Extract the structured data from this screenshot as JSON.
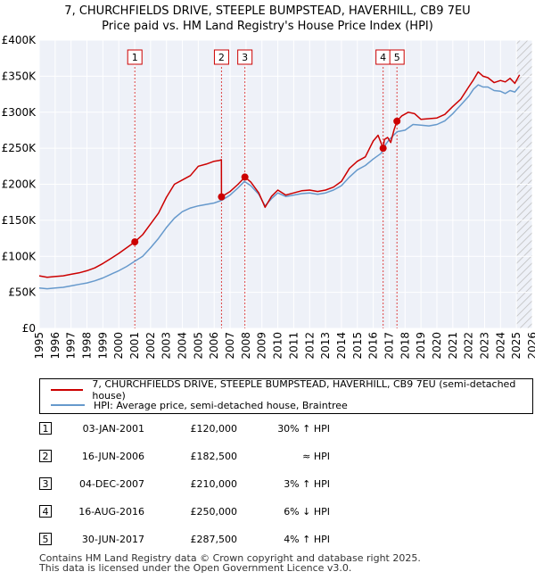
{
  "chart_data": {
    "type": "line",
    "title": "7, CHURCHFIELDS DRIVE, STEEPLE BUMPSTEAD, HAVERHILL, CB9 7EU",
    "subtitle": "Price paid vs. HM Land Registry's House Price Index (HPI)",
    "xlim": [
      1995,
      2026
    ],
    "ylim": [
      0,
      400000
    ],
    "x_ticks": [
      "1995",
      "1996",
      "1997",
      "1998",
      "1999",
      "2000",
      "2001",
      "2002",
      "2003",
      "2004",
      "2005",
      "2006",
      "2007",
      "2008",
      "2009",
      "2010",
      "2011",
      "2012",
      "2013",
      "2014",
      "2015",
      "2016",
      "2017",
      "2018",
      "2019",
      "2020",
      "2021",
      "2022",
      "2023",
      "2024",
      "2025",
      "2026"
    ],
    "y_ticks": [
      "£0",
      "£50K",
      "£100K",
      "£150K",
      "£200K",
      "£250K",
      "£300K",
      "£350K",
      "£400K"
    ],
    "grid": true,
    "series": [
      {
        "name": "7, CHURCHFIELDS DRIVE, STEEPLE BUMPSTEAD, HAVERHILL, CB9 7EU (semi-detached house)",
        "color": "#cc0000",
        "x": [
          1995.0,
          1995.5,
          1996.0,
          1996.5,
          1997.0,
          1997.5,
          1998.0,
          1998.5,
          1999.0,
          1999.5,
          2000.0,
          2000.5,
          2001.01,
          2001.5,
          2002.0,
          2002.5,
          2003.0,
          2003.5,
          2004.0,
          2004.5,
          2005.0,
          2005.5,
          2006.0,
          2006.3,
          2006.45,
          2006.46,
          2007.0,
          2007.5,
          2007.93,
          2008.3,
          2008.8,
          2009.2,
          2009.6,
          2010.0,
          2010.5,
          2011.0,
          2011.5,
          2012.0,
          2012.5,
          2013.0,
          2013.5,
          2014.0,
          2014.5,
          2015.0,
          2015.5,
          2016.0,
          2016.3,
          2016.62,
          2016.7,
          2016.9,
          2017.1,
          2017.3,
          2017.49,
          2017.8,
          2018.2,
          2018.6,
          2019.0,
          2019.5,
          2020.0,
          2020.5,
          2021.0,
          2021.5,
          2022.0,
          2022.3,
          2022.6,
          2022.9,
          2023.2,
          2023.6,
          2024.0,
          2024.3,
          2024.6,
          2024.9,
          2025.2
        ],
        "values": [
          73000,
          71000,
          72000,
          73000,
          75000,
          77000,
          80000,
          84000,
          90000,
          97000,
          104000,
          112000,
          120000,
          130000,
          145000,
          160000,
          182000,
          200000,
          206000,
          212000,
          225000,
          228000,
          232000,
          233000,
          234000,
          182500,
          190000,
          200000,
          210000,
          203000,
          188000,
          168000,
          183000,
          192000,
          185000,
          188000,
          191000,
          192000,
          190000,
          192000,
          196000,
          204000,
          222000,
          232000,
          238000,
          260000,
          268000,
          250000,
          262000,
          265000,
          258000,
          275000,
          287500,
          295000,
          300000,
          298000,
          290000,
          291000,
          292000,
          297000,
          308000,
          318000,
          335000,
          345000,
          356000,
          350000,
          348000,
          341000,
          344000,
          342000,
          347000,
          340000,
          352000
        ]
      },
      {
        "name": "HPI: Average price, semi-detached house, Braintree",
        "color": "#6699cc",
        "x": [
          1995.0,
          1995.5,
          1996.0,
          1996.5,
          1997.0,
          1997.5,
          1998.0,
          1998.5,
          1999.0,
          1999.5,
          2000.0,
          2000.5,
          2001.0,
          2001.5,
          2002.0,
          2002.5,
          2003.0,
          2003.5,
          2004.0,
          2004.5,
          2005.0,
          2005.5,
          2006.0,
          2006.5,
          2007.0,
          2007.5,
          2007.9,
          2008.3,
          2008.8,
          2009.2,
          2009.6,
          2010.0,
          2010.5,
          2011.0,
          2011.5,
          2012.0,
          2012.5,
          2013.0,
          2013.5,
          2014.0,
          2014.5,
          2015.0,
          2015.5,
          2016.0,
          2016.5,
          2016.8,
          2017.0,
          2017.5,
          2018.0,
          2018.5,
          2019.0,
          2019.5,
          2020.0,
          2020.5,
          2021.0,
          2021.5,
          2022.0,
          2022.3,
          2022.6,
          2022.9,
          2023.2,
          2023.6,
          2024.0,
          2024.3,
          2024.6,
          2024.9,
          2025.2
        ],
        "values": [
          56000,
          55000,
          56000,
          57000,
          59000,
          61000,
          63000,
          66000,
          70000,
          75000,
          80000,
          86000,
          93000,
          100000,
          112000,
          125000,
          140000,
          153000,
          162000,
          167000,
          170000,
          172000,
          174000,
          178000,
          185000,
          195000,
          204000,
          198000,
          186000,
          170000,
          180000,
          188000,
          183000,
          185000,
          187000,
          188000,
          186000,
          188000,
          192000,
          198000,
          210000,
          220000,
          226000,
          235000,
          243000,
          256000,
          262000,
          273000,
          275000,
          283000,
          282000,
          281000,
          283000,
          288000,
          298000,
          310000,
          322000,
          332000,
          338000,
          335000,
          335000,
          330000,
          329000,
          326000,
          330000,
          328000,
          336000
        ]
      }
    ],
    "sale_markers": [
      {
        "label": "1",
        "x": 2001.01,
        "y": 120000
      },
      {
        "label": "2",
        "x": 2006.46,
        "y": 182500
      },
      {
        "label": "3",
        "x": 2007.93,
        "y": 210000
      },
      {
        "label": "4",
        "x": 2016.62,
        "y": 250000
      },
      {
        "label": "5",
        "x": 2017.49,
        "y": 287500
      }
    ],
    "annotations": "Dashed vertical lines at each sale date with numbered boxes; hatched region after early 2025"
  },
  "legend": {
    "property_label": "7, CHURCHFIELDS DRIVE, STEEPLE BUMPSTEAD, HAVERHILL, CB9 7EU (semi-detached house)",
    "hpi_label": "HPI: Average price, semi-detached house, Braintree",
    "property_color": "#cc0000",
    "hpi_color": "#6699cc"
  },
  "sales": [
    {
      "num": "1",
      "date": "03-JAN-2001",
      "price": "£120,000",
      "hpi": "30% ↑ HPI"
    },
    {
      "num": "2",
      "date": "16-JUN-2006",
      "price": "£182,500",
      "hpi": "≈ HPI"
    },
    {
      "num": "3",
      "date": "04-DEC-2007",
      "price": "£210,000",
      "hpi": "3% ↑ HPI"
    },
    {
      "num": "4",
      "date": "16-AUG-2016",
      "price": "£250,000",
      "hpi": "6% ↓ HPI"
    },
    {
      "num": "5",
      "date": "30-JUN-2017",
      "price": "£287,500",
      "hpi": "4% ↑ HPI"
    }
  ],
  "footer": {
    "line1": "Contains HM Land Registry data © Crown copyright and database right 2025.",
    "line2": "This data is licensed under the Open Government Licence v3.0."
  }
}
